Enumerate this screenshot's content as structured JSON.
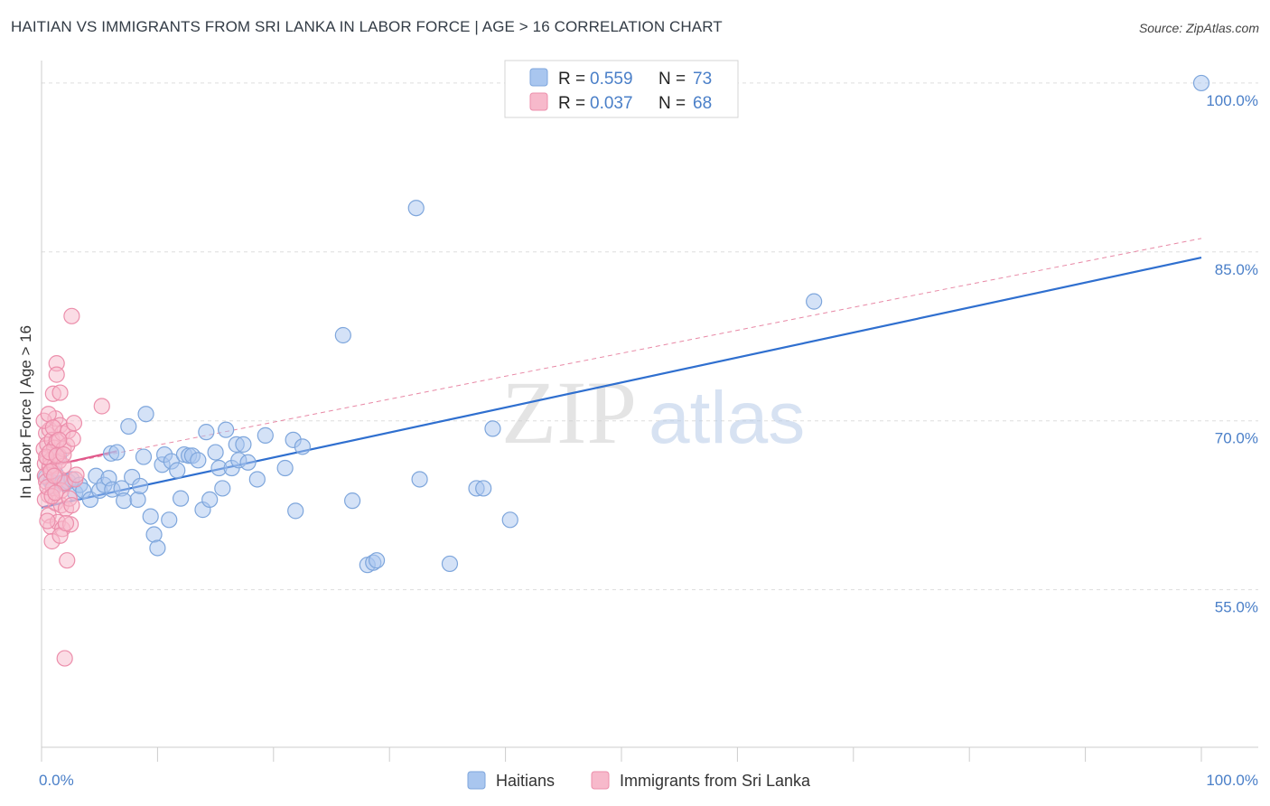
{
  "title": "HAITIAN VS IMMIGRANTS FROM SRI LANKA IN LABOR FORCE | AGE > 16 CORRELATION CHART",
  "source": "Source: ZipAtlas.com",
  "watermark": {
    "zip": "ZIP",
    "atlas": "atlas"
  },
  "chart_data": {
    "type": "scatter",
    "ylabel": "In Labor Force | Age > 16",
    "xlim": [
      0,
      100
    ],
    "ylim": [
      41,
      102
    ],
    "x_tick_labels": [
      "0.0%",
      "100.0%"
    ],
    "y_ticks": [
      {
        "value": 55,
        "label": "55.0%"
      },
      {
        "value": 70,
        "label": "70.0%"
      },
      {
        "value": 85,
        "label": "85.0%"
      },
      {
        "value": 100,
        "label": "100.0%"
      }
    ],
    "legend": {
      "rows": [
        {
          "r_label": "R = ",
          "r_value": "0.559",
          "n_label": "N = ",
          "n_value": "73"
        },
        {
          "r_label": "R = ",
          "r_value": "0.037",
          "n_label": "N = ",
          "n_value": "68"
        }
      ]
    },
    "series": [
      {
        "name": "Haitians",
        "color": "#a9c6ef",
        "stroke": "#7ea6dc",
        "trend": {
          "x": [
            0,
            100
          ],
          "y": [
            62.3,
            84.5
          ],
          "color": "#2f6fcf",
          "dashed": false
        },
        "trend_ext": {
          "x": [
            0,
            100
          ],
          "y": [
            65.8,
            86.2
          ],
          "color": "#e889a6",
          "dashed": true
        },
        "points": [
          [
            0.4,
            65.0
          ],
          [
            0.8,
            64.6
          ],
          [
            1.0,
            64.2
          ],
          [
            1.2,
            65.3
          ],
          [
            1.5,
            66.9
          ],
          [
            1.8,
            64.5
          ],
          [
            2.0,
            64.4
          ],
          [
            2.3,
            64.6
          ],
          [
            2.6,
            64.8
          ],
          [
            2.9,
            63.6
          ],
          [
            3.3,
            64.3
          ],
          [
            3.6,
            63.8
          ],
          [
            4.2,
            63.0
          ],
          [
            4.7,
            65.1
          ],
          [
            5.0,
            63.8
          ],
          [
            5.4,
            64.3
          ],
          [
            5.8,
            64.9
          ],
          [
            6.1,
            63.9
          ],
          [
            6.0,
            67.1
          ],
          [
            6.5,
            67.2
          ],
          [
            6.9,
            64.0
          ],
          [
            7.1,
            62.9
          ],
          [
            7.5,
            69.5
          ],
          [
            7.8,
            65.0
          ],
          [
            8.3,
            63.0
          ],
          [
            8.5,
            64.2
          ],
          [
            8.8,
            66.8
          ],
          [
            9.0,
            70.6
          ],
          [
            9.4,
            61.5
          ],
          [
            9.7,
            59.9
          ],
          [
            10.0,
            58.7
          ],
          [
            10.4,
            66.1
          ],
          [
            10.6,
            67.0
          ],
          [
            11.0,
            61.2
          ],
          [
            11.2,
            66.4
          ],
          [
            11.7,
            65.6
          ],
          [
            12.0,
            63.1
          ],
          [
            12.3,
            67.0
          ],
          [
            12.7,
            66.9
          ],
          [
            13.0,
            66.9
          ],
          [
            13.5,
            66.5
          ],
          [
            13.9,
            62.1
          ],
          [
            14.2,
            69.0
          ],
          [
            14.5,
            63.0
          ],
          [
            15.0,
            67.2
          ],
          [
            15.3,
            65.8
          ],
          [
            15.6,
            64.0
          ],
          [
            15.9,
            69.2
          ],
          [
            16.4,
            65.8
          ],
          [
            16.8,
            67.9
          ],
          [
            17.0,
            66.5
          ],
          [
            17.4,
            67.9
          ],
          [
            17.8,
            66.3
          ],
          [
            18.6,
            64.8
          ],
          [
            19.3,
            68.7
          ],
          [
            21.0,
            65.8
          ],
          [
            21.7,
            68.3
          ],
          [
            21.9,
            62.0
          ],
          [
            22.5,
            67.7
          ],
          [
            26.0,
            77.6
          ],
          [
            26.8,
            62.9
          ],
          [
            28.1,
            57.2
          ],
          [
            28.6,
            57.4
          ],
          [
            28.9,
            57.6
          ],
          [
            32.3,
            88.9
          ],
          [
            32.6,
            64.8
          ],
          [
            35.2,
            57.3
          ],
          [
            37.5,
            64.0
          ],
          [
            38.1,
            64.0
          ],
          [
            38.9,
            69.3
          ],
          [
            40.4,
            61.2
          ],
          [
            66.6,
            80.6
          ],
          [
            100,
            100.0
          ]
        ]
      },
      {
        "name": "Immigrants from Sri Lanka",
        "color": "#f7b9cb",
        "stroke": "#ec8eab",
        "trend": {
          "x": [
            0,
            6.5
          ],
          "y": [
            65.8,
            67.3
          ],
          "color": "#e0578a",
          "dashed": false
        },
        "points": [
          [
            0.2,
            67.5
          ],
          [
            0.3,
            66.2
          ],
          [
            0.3,
            65.1
          ],
          [
            0.4,
            64.6
          ],
          [
            0.4,
            68.9
          ],
          [
            0.5,
            67.9
          ],
          [
            0.5,
            66.7
          ],
          [
            0.6,
            63.4
          ],
          [
            0.6,
            61.6
          ],
          [
            0.7,
            69.2
          ],
          [
            0.7,
            65.9
          ],
          [
            0.8,
            66.5
          ],
          [
            0.8,
            60.6
          ],
          [
            0.9,
            59.3
          ],
          [
            0.9,
            68.3
          ],
          [
            1.0,
            64.0
          ],
          [
            1.0,
            72.4
          ],
          [
            1.1,
            67.6
          ],
          [
            1.1,
            66.0
          ],
          [
            1.2,
            62.7
          ],
          [
            1.2,
            70.2
          ],
          [
            1.3,
            75.1
          ],
          [
            1.3,
            74.1
          ],
          [
            1.3,
            68.2
          ],
          [
            1.4,
            61.0
          ],
          [
            1.4,
            67.0
          ],
          [
            1.5,
            66.4
          ],
          [
            1.5,
            64.9
          ],
          [
            1.6,
            72.5
          ],
          [
            1.6,
            69.6
          ],
          [
            1.7,
            63.8
          ],
          [
            1.7,
            62.5
          ],
          [
            1.8,
            68.9
          ],
          [
            1.8,
            60.4
          ],
          [
            1.9,
            67.5
          ],
          [
            1.9,
            66.0
          ],
          [
            2.0,
            48.9
          ],
          [
            2.0,
            64.5
          ],
          [
            2.1,
            62.2
          ],
          [
            2.2,
            57.6
          ],
          [
            2.2,
            67.8
          ],
          [
            2.3,
            69.1
          ],
          [
            2.4,
            63.1
          ],
          [
            2.5,
            60.8
          ],
          [
            2.6,
            62.5
          ],
          [
            2.7,
            68.4
          ],
          [
            2.6,
            79.3
          ],
          [
            2.8,
            69.8
          ],
          [
            2.9,
            64.8
          ],
          [
            3.0,
            65.2
          ],
          [
            0.2,
            70.0
          ],
          [
            0.3,
            63.0
          ],
          [
            0.4,
            66.8
          ],
          [
            0.5,
            64.1
          ],
          [
            0.6,
            70.6
          ],
          [
            0.7,
            67.2
          ],
          [
            0.8,
            65.5
          ],
          [
            0.9,
            63.3
          ],
          [
            1.0,
            69.4
          ],
          [
            1.1,
            65.1
          ],
          [
            1.2,
            63.6
          ],
          [
            1.3,
            66.9
          ],
          [
            1.5,
            68.3
          ],
          [
            1.6,
            59.8
          ],
          [
            1.9,
            67.0
          ],
          [
            2.1,
            60.9
          ],
          [
            5.2,
            71.3
          ],
          [
            0.5,
            61.1
          ]
        ]
      }
    ]
  }
}
